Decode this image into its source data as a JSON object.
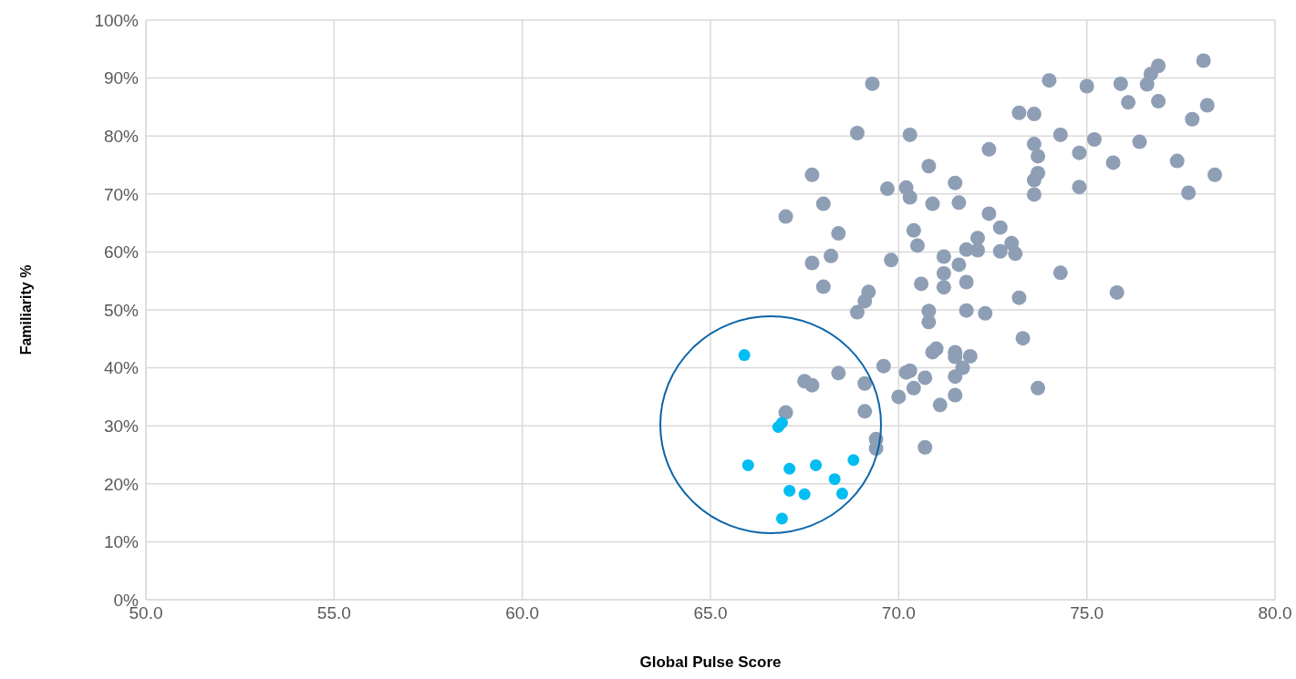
{
  "chart_data": {
    "type": "scatter",
    "xlabel": "Global Pulse Score",
    "ylabel": "Familiarity %",
    "xlim": [
      50,
      80
    ],
    "xticks": [
      {
        "value": 50,
        "label": "50.0"
      },
      {
        "value": 55,
        "label": "55.0"
      },
      {
        "value": 60,
        "label": "60.0"
      },
      {
        "value": 65,
        "label": "65.0"
      },
      {
        "value": 70,
        "label": "70.0"
      },
      {
        "value": 75,
        "label": "75.0"
      },
      {
        "value": 80,
        "label": "80.0"
      }
    ],
    "ylim": [
      0,
      100
    ],
    "yticks": [
      {
        "value": 0,
        "label": "0%"
      },
      {
        "value": 10,
        "label": "10%"
      },
      {
        "value": 20,
        "label": "20%"
      },
      {
        "value": 30,
        "label": "30%"
      },
      {
        "value": 40,
        "label": "40%"
      },
      {
        "value": 50,
        "label": "50%"
      },
      {
        "value": 60,
        "label": "60%"
      },
      {
        "value": 70,
        "label": "70%"
      },
      {
        "value": 80,
        "label": "80%"
      },
      {
        "value": 90,
        "label": "90%"
      },
      {
        "value": 100,
        "label": "100%"
      }
    ],
    "grid": true,
    "marker": "circle",
    "series": [
      {
        "color": "#8e9eb5",
        "x": [
          69.3,
          68.9,
          70.3,
          67.7,
          68.0,
          67.0,
          69.7,
          70.2,
          70.3,
          70.8,
          70.9,
          68.4,
          68.2,
          67.7,
          68.0,
          69.8,
          69.2,
          69.1,
          68.9,
          70.4,
          70.5,
          70.6,
          70.8,
          70.8,
          71.2,
          71.2,
          71.2,
          71.5,
          71.6,
          71.6,
          71.8,
          71.8,
          71.8,
          72.1,
          72.1,
          72.3,
          72.4,
          72.4,
          72.7,
          72.7,
          73.0,
          73.1,
          73.2,
          73.2,
          73.6,
          73.6,
          73.7,
          73.7,
          73.6,
          73.6,
          74.0,
          74.3,
          74.8,
          75.0,
          75.2,
          74.8,
          75.7,
          75.9,
          76.1,
          76.4,
          76.7,
          76.6,
          76.9,
          76.9,
          77.4,
          77.8,
          77.7,
          78.1,
          78.2,
          78.4,
          74.3,
          75.8,
          73.3,
          73.7,
          71.0,
          70.9,
          71.5,
          71.5,
          71.9,
          71.7,
          71.5,
          71.5,
          71.1,
          70.7,
          70.3,
          70.2,
          70.4,
          70.0,
          69.6,
          70.7,
          69.1,
          68.4,
          67.5,
          67.7,
          67.0,
          69.1,
          69.4,
          69.4
        ],
        "values": [
          89.0,
          80.5,
          80.2,
          73.3,
          68.3,
          66.1,
          70.9,
          71.1,
          69.4,
          74.8,
          68.3,
          63.2,
          59.3,
          58.1,
          54.0,
          58.6,
          53.1,
          51.5,
          49.6,
          63.7,
          61.1,
          54.5,
          49.8,
          47.9,
          59.2,
          56.3,
          53.9,
          71.9,
          68.5,
          57.8,
          60.4,
          54.8,
          49.9,
          62.4,
          60.3,
          49.4,
          66.6,
          77.7,
          64.2,
          60.1,
          61.5,
          59.7,
          52.1,
          84.0,
          83.8,
          78.6,
          76.5,
          73.6,
          72.4,
          69.9,
          89.6,
          80.2,
          77.1,
          88.6,
          79.4,
          71.2,
          75.4,
          89.0,
          85.8,
          79.0,
          90.7,
          88.9,
          92.1,
          86.0,
          75.7,
          82.9,
          70.2,
          93.0,
          85.3,
          73.3,
          56.4,
          53.0,
          45.1,
          36.5,
          43.3,
          42.7,
          42.7,
          41.9,
          42.0,
          40.0,
          38.5,
          35.3,
          33.6,
          38.3,
          39.5,
          39.2,
          36.5,
          35.0,
          40.3,
          26.3,
          37.3,
          39.1,
          37.7,
          37.0,
          32.3,
          32.5,
          27.7,
          26.1
        ]
      },
      {
        "color": "#00bdf2",
        "x": [
          65.9,
          66.0,
          66.8,
          66.9,
          67.1,
          67.1,
          66.9,
          67.5,
          67.8,
          68.3,
          68.5,
          68.8
        ],
        "values": [
          42.2,
          23.2,
          29.8,
          30.5,
          22.6,
          18.8,
          14.0,
          18.2,
          23.2,
          20.8,
          18.3,
          24.1
        ]
      }
    ]
  }
}
